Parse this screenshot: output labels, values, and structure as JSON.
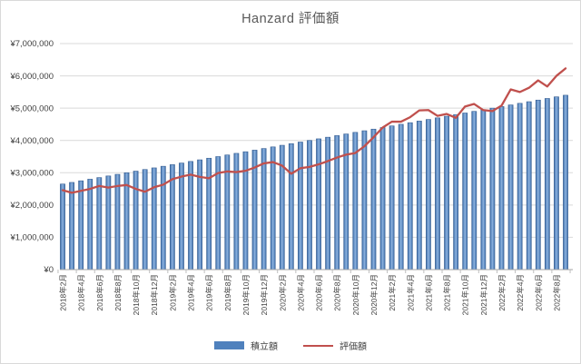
{
  "chart_data": {
    "type": "combo-bar-line",
    "title": "Hanzard  評価額",
    "grid": true,
    "legend_position": "bottom",
    "n_points": 56,
    "points_per_label": 2,
    "y_axis": {
      "min": 0,
      "max": 7000000,
      "step": 1000000,
      "tick_labels": [
        "¥0",
        "¥1,000,000",
        "¥2,000,000",
        "¥3,000,000",
        "¥4,000,000",
        "¥5,000,000",
        "¥6,000,000",
        "¥7,000,000"
      ]
    },
    "x_tick_labels": [
      "2018年2月",
      "2018年4月",
      "2018年6月",
      "2018年8月",
      "2018年10月",
      "2018年12月",
      "2019年2月",
      "2019年4月",
      "2019年6月",
      "2019年8月",
      "2019年10月",
      "2019年12月",
      "2020年2月",
      "2020年4月",
      "2020年6月",
      "2020年8月",
      "2020年10月",
      "2020年12月",
      "2021年2月",
      "2021年4月",
      "2021年6月",
      "2021年8月",
      "2021年10月",
      "2021年12月",
      "2022年2月",
      "2022年4月",
      "2022年6月",
      "2022年8月"
    ],
    "series": [
      {
        "name": "積立額",
        "type": "bar",
        "color": "#4F81BD",
        "values": [
          2650000,
          2700000,
          2750000,
          2800000,
          2850000,
          2900000,
          2950000,
          3000000,
          3050000,
          3100000,
          3150000,
          3200000,
          3250000,
          3300000,
          3350000,
          3400000,
          3450000,
          3500000,
          3550000,
          3600000,
          3650000,
          3700000,
          3750000,
          3800000,
          3850000,
          3900000,
          3950000,
          4000000,
          4050000,
          4100000,
          4150000,
          4200000,
          4250000,
          4300000,
          4350000,
          4400000,
          4450000,
          4500000,
          4550000,
          4600000,
          4650000,
          4700000,
          4750000,
          4800000,
          4850000,
          4900000,
          4950000,
          5000000,
          5050000,
          5100000,
          5150000,
          5200000,
          5250000,
          5300000,
          5350000,
          5400000
        ]
      },
      {
        "name": "評価額",
        "type": "line",
        "color": "#C0504D",
        "values": [
          2460000,
          2380000,
          2440000,
          2500000,
          2590000,
          2540000,
          2590000,
          2620000,
          2500000,
          2410000,
          2550000,
          2630000,
          2800000,
          2880000,
          2940000,
          2870000,
          2830000,
          2990000,
          3040000,
          3020000,
          3060000,
          3160000,
          3290000,
          3330000,
          3220000,
          2970000,
          3140000,
          3180000,
          3260000,
          3360000,
          3470000,
          3560000,
          3610000,
          3820000,
          4100000,
          4400000,
          4580000,
          4580000,
          4720000,
          4930000,
          4940000,
          4760000,
          4820000,
          4700000,
          5050000,
          5130000,
          4940000,
          4910000,
          5080000,
          5580000,
          5500000,
          5630000,
          5860000,
          5670000,
          6000000,
          6230000
        ]
      }
    ],
    "colors": {
      "gridline": "#D9D9D9",
      "axis_line": "#A6A6A6",
      "tick": "#BFBFBF",
      "title_text": "#595959",
      "axis_text": "#3F3F3F",
      "background": "#FFFFFF",
      "border": "#D9D9D9"
    }
  }
}
